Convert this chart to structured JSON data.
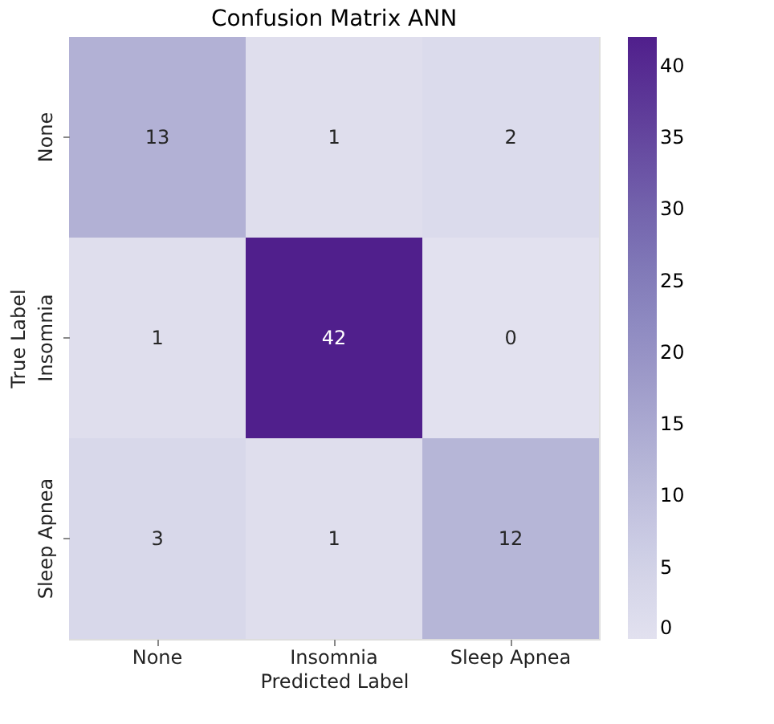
{
  "chart_data": {
    "type": "heatmap",
    "title": "Confusion Matrix ANN",
    "xlabel": "Predicted Label",
    "ylabel": "True Label",
    "categories": [
      "None",
      "Insomnia",
      "Sleep Apnea"
    ],
    "y_categories": [
      "None",
      "Insomnia",
      "Sleep Apnea"
    ],
    "cells": [
      [
        13,
        1,
        2
      ],
      [
        1,
        42,
        0
      ],
      [
        3,
        1,
        12
      ]
    ],
    "clim": [
      0,
      42
    ],
    "cticks": [
      0,
      5,
      10,
      15,
      20,
      25,
      30,
      35,
      40
    ],
    "data_labels": true
  }
}
